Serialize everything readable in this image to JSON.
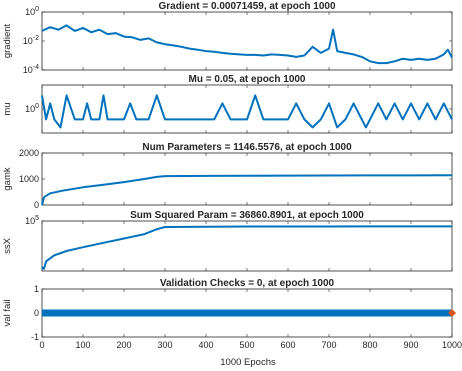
{
  "figure": {
    "xlabel": "1000 Epochs"
  },
  "chart_data": [
    {
      "type": "line",
      "title": "Gradient = 0.00071459, at epoch 1000",
      "ylabel": "gradient",
      "scale": "log",
      "xlim": [
        0,
        1000
      ],
      "ylim": [
        0.0001,
        1
      ],
      "yticks": [
        "10^0",
        "10^-2",
        "10^-4"
      ],
      "line_color": "#0072BD",
      "series": [
        {
          "points": [
            [
              0,
              0.05
            ],
            [
              20,
              0.09
            ],
            [
              40,
              0.06
            ],
            [
              60,
              0.12
            ],
            [
              80,
              0.05
            ],
            [
              100,
              0.08
            ],
            [
              120,
              0.04
            ],
            [
              140,
              0.06
            ],
            [
              160,
              0.03
            ],
            [
              180,
              0.035
            ],
            [
              200,
              0.02
            ],
            [
              220,
              0.018
            ],
            [
              240,
              0.012
            ],
            [
              260,
              0.015
            ],
            [
              280,
              0.008
            ],
            [
              300,
              0.006
            ],
            [
              320,
              0.005
            ],
            [
              340,
              0.004
            ],
            [
              360,
              0.003
            ],
            [
              380,
              0.0025
            ],
            [
              400,
              0.002
            ],
            [
              420,
              0.0018
            ],
            [
              440,
              0.0015
            ],
            [
              460,
              0.0013
            ],
            [
              480,
              0.0012
            ],
            [
              500,
              0.0011
            ],
            [
              520,
              0.0011
            ],
            [
              540,
              0.001
            ],
            [
              560,
              0.0012
            ],
            [
              580,
              0.0011
            ],
            [
              600,
              0.001
            ],
            [
              620,
              0.0008
            ],
            [
              640,
              0.001
            ],
            [
              660,
              0.004
            ],
            [
              680,
              0.0015
            ],
            [
              700,
              0.003
            ],
            [
              710,
              0.06
            ],
            [
              720,
              0.002
            ],
            [
              740,
              0.0015
            ],
            [
              760,
              0.0012
            ],
            [
              780,
              0.0008
            ],
            [
              800,
              0.0004
            ],
            [
              820,
              0.0003
            ],
            [
              840,
              0.0003
            ],
            [
              860,
              0.0004
            ],
            [
              880,
              0.0006
            ],
            [
              900,
              0.0005
            ],
            [
              920,
              0.0006
            ],
            [
              940,
              0.0005
            ],
            [
              960,
              0.0006
            ],
            [
              980,
              0.0012
            ],
            [
              990,
              0.0025
            ],
            [
              1000,
              0.00071459
            ]
          ]
        }
      ]
    },
    {
      "type": "line",
      "title": "Mu = 0.05, at epoch 1000",
      "ylabel": "mu",
      "scale": "log",
      "xlim": [
        0,
        1000
      ],
      "ylim": [
        0.001,
        1000
      ],
      "yticks": [
        "10^0"
      ],
      "line_color": "#0072BD",
      "series": [
        {
          "points": [
            [
              0,
              50
            ],
            [
              10,
              0.05
            ],
            [
              20,
              5
            ],
            [
              30,
              0.05
            ],
            [
              45,
              0.005
            ],
            [
              60,
              50
            ],
            [
              80,
              0.05
            ],
            [
              100,
              0.05
            ],
            [
              110,
              5
            ],
            [
              120,
              0.05
            ],
            [
              140,
              0.05
            ],
            [
              150,
              50
            ],
            [
              160,
              0.05
            ],
            [
              200,
              0.05
            ],
            [
              215,
              5
            ],
            [
              230,
              0.05
            ],
            [
              260,
              0.05
            ],
            [
              280,
              50
            ],
            [
              300,
              0.05
            ],
            [
              420,
              0.05
            ],
            [
              440,
              5
            ],
            [
              460,
              0.05
            ],
            [
              500,
              0.05
            ],
            [
              520,
              50
            ],
            [
              540,
              0.05
            ],
            [
              600,
              0.05
            ],
            [
              620,
              5
            ],
            [
              640,
              0.05
            ],
            [
              660,
              0.005
            ],
            [
              680,
              0.05
            ],
            [
              700,
              5
            ],
            [
              720,
              0.005
            ],
            [
              740,
              0.05
            ],
            [
              760,
              5
            ],
            [
              780,
              0.05
            ],
            [
              790,
              0.005
            ],
            [
              800,
              0.05
            ],
            [
              820,
              5
            ],
            [
              840,
              0.05
            ],
            [
              860,
              5
            ],
            [
              880,
              0.05
            ],
            [
              900,
              5
            ],
            [
              920,
              0.05
            ],
            [
              940,
              5
            ],
            [
              960,
              0.05
            ],
            [
              980,
              5
            ],
            [
              1000,
              0.05
            ]
          ]
        }
      ]
    },
    {
      "type": "line",
      "title": "Num Parameters = 1146.5576, at epoch 1000",
      "ylabel": "gamk",
      "scale": "linear",
      "xlim": [
        0,
        1000
      ],
      "ylim": [
        0,
        2000
      ],
      "yticks": [
        "2000",
        "1000",
        "0"
      ],
      "line_color": "#0072BD",
      "series": [
        {
          "points": [
            [
              0,
              0
            ],
            [
              5,
              300
            ],
            [
              20,
              450
            ],
            [
              50,
              550
            ],
            [
              100,
              680
            ],
            [
              150,
              780
            ],
            [
              200,
              880
            ],
            [
              250,
              1000
            ],
            [
              280,
              1080
            ],
            [
              300,
              1110
            ],
            [
              400,
              1120
            ],
            [
              500,
              1125
            ],
            [
              600,
              1130
            ],
            [
              700,
              1135
            ],
            [
              800,
              1140
            ],
            [
              900,
              1140
            ],
            [
              1000,
              1146.5576
            ]
          ]
        }
      ]
    },
    {
      "type": "line",
      "title": "Sum Squared Param = 36860.8901, at epoch 1000",
      "ylabel": "ssX",
      "scale": "log",
      "xlim": [
        0,
        1000
      ],
      "ylim": [
        10,
        100000
      ],
      "yticks": [
        "10^5"
      ],
      "line_color": "#0072BD",
      "series": [
        {
          "points": [
            [
              0,
              20
            ],
            [
              5,
              15
            ],
            [
              10,
              60
            ],
            [
              30,
              180
            ],
            [
              60,
              400
            ],
            [
              100,
              800
            ],
            [
              150,
              1800
            ],
            [
              200,
              4000
            ],
            [
              250,
              9000
            ],
            [
              280,
              22000
            ],
            [
              300,
              33000
            ],
            [
              400,
              35000
            ],
            [
              500,
              36000
            ],
            [
              600,
              36200
            ],
            [
              700,
              36500
            ],
            [
              800,
              36700
            ],
            [
              900,
              36800
            ],
            [
              1000,
              36860.8901
            ]
          ]
        }
      ]
    },
    {
      "type": "scatter",
      "title": "Validation Checks = 0, at epoch 1000",
      "ylabel": "val fail",
      "scale": "linear",
      "xlim": [
        0,
        1000
      ],
      "ylim": [
        -1,
        1
      ],
      "yticks": [
        "1",
        "0",
        "-1"
      ],
      "xticks": [
        "0",
        "100",
        "200",
        "300",
        "400",
        "500",
        "600",
        "700",
        "800",
        "900",
        "1000"
      ],
      "line_color": "#0072BD",
      "marker_color": "#D95319",
      "series": [
        {
          "points": [
            [
              0,
              0
            ],
            [
              1000,
              0
            ]
          ],
          "marker": [
            1000,
            0
          ]
        }
      ]
    }
  ]
}
